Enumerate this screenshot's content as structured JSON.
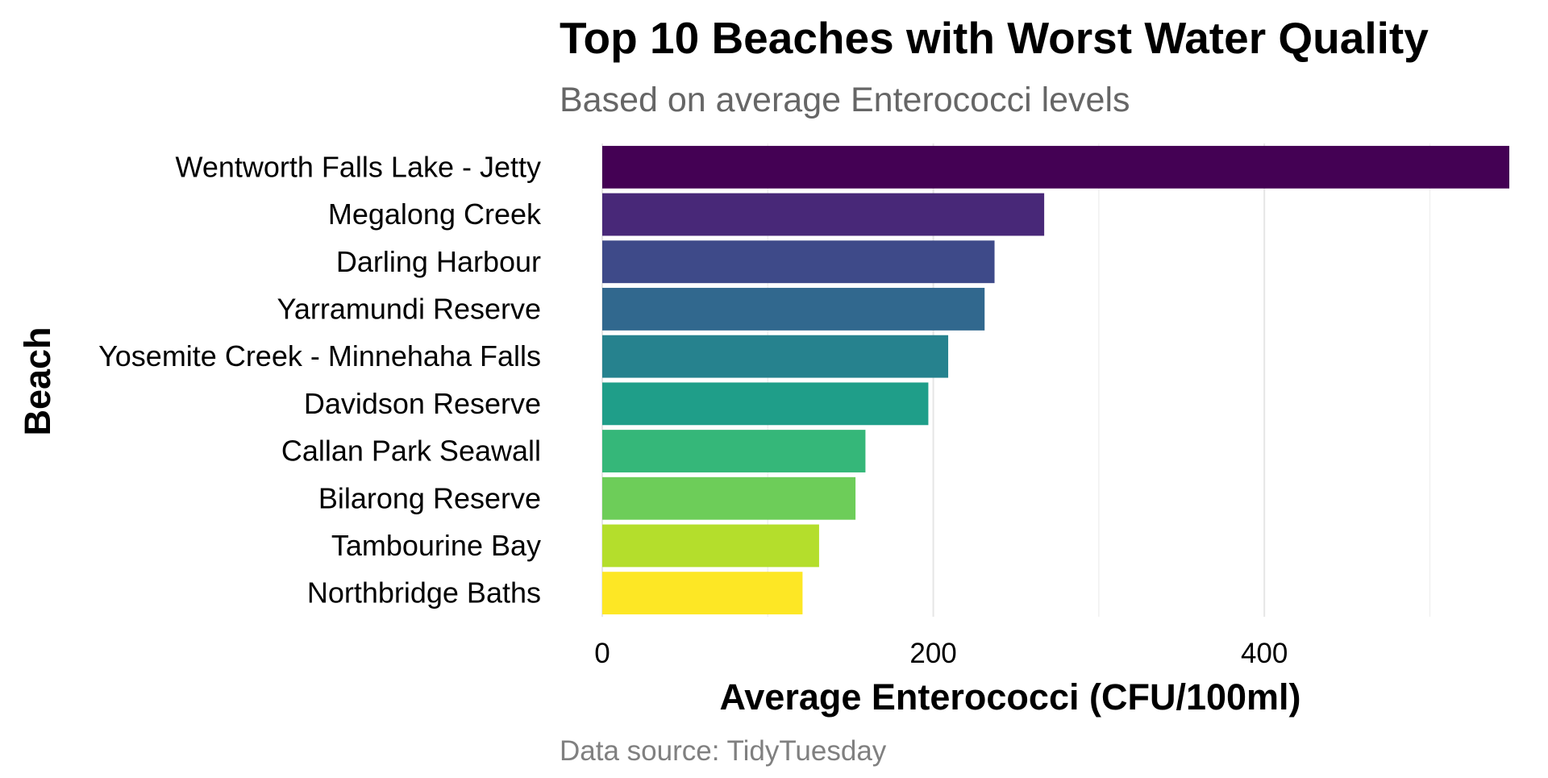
{
  "chart_data": {
    "type": "bar",
    "orientation": "horizontal",
    "title": "Top 10 Beaches with Worst Water Quality",
    "subtitle": "Based on average Enterococci levels",
    "xlabel": "Average Enterococci (CFU/100ml)",
    "ylabel": "Beach",
    "caption": "Data source: TidyTuesday",
    "xlim": [
      0,
      548
    ],
    "x_ticks": [
      0,
      200,
      400
    ],
    "x_minor_ticks": [
      100,
      300,
      500
    ],
    "grid": true,
    "legend": "none",
    "categories": [
      "Wentworth Falls Lake - Jetty",
      "Megalong Creek",
      "Darling Harbour",
      "Yarramundi Reserve",
      "Yosemite Creek - Minnehaha Falls",
      "Davidson Reserve",
      "Callan Park Seawall",
      "Bilarong Reserve",
      "Tambourine Bay",
      "Northbridge Baths"
    ],
    "values": [
      548,
      267,
      237,
      231,
      209,
      197,
      159,
      153,
      131,
      121
    ],
    "colors": [
      "#440154",
      "#482878",
      "#3E4A89",
      "#31688E",
      "#26828E",
      "#1F9E89",
      "#35B779",
      "#6DCD59",
      "#B4DE2C",
      "#FDE725"
    ],
    "background": "#ffffff"
  }
}
